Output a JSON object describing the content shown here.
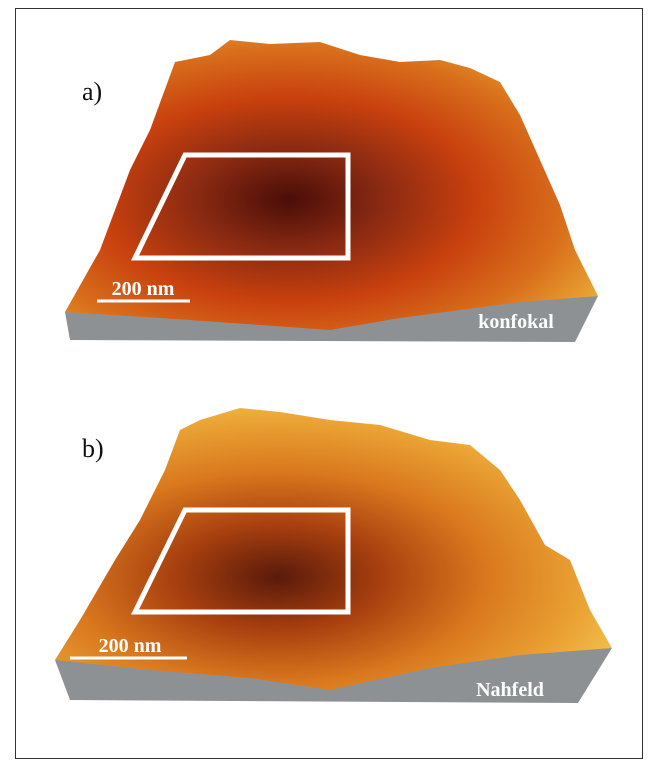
{
  "panels": [
    {
      "label": "a)",
      "scale_bar": "200 nm",
      "caption": "konfokal"
    },
    {
      "label": "b)",
      "scale_bar": "200 nm",
      "caption": "Nahfeld"
    }
  ]
}
